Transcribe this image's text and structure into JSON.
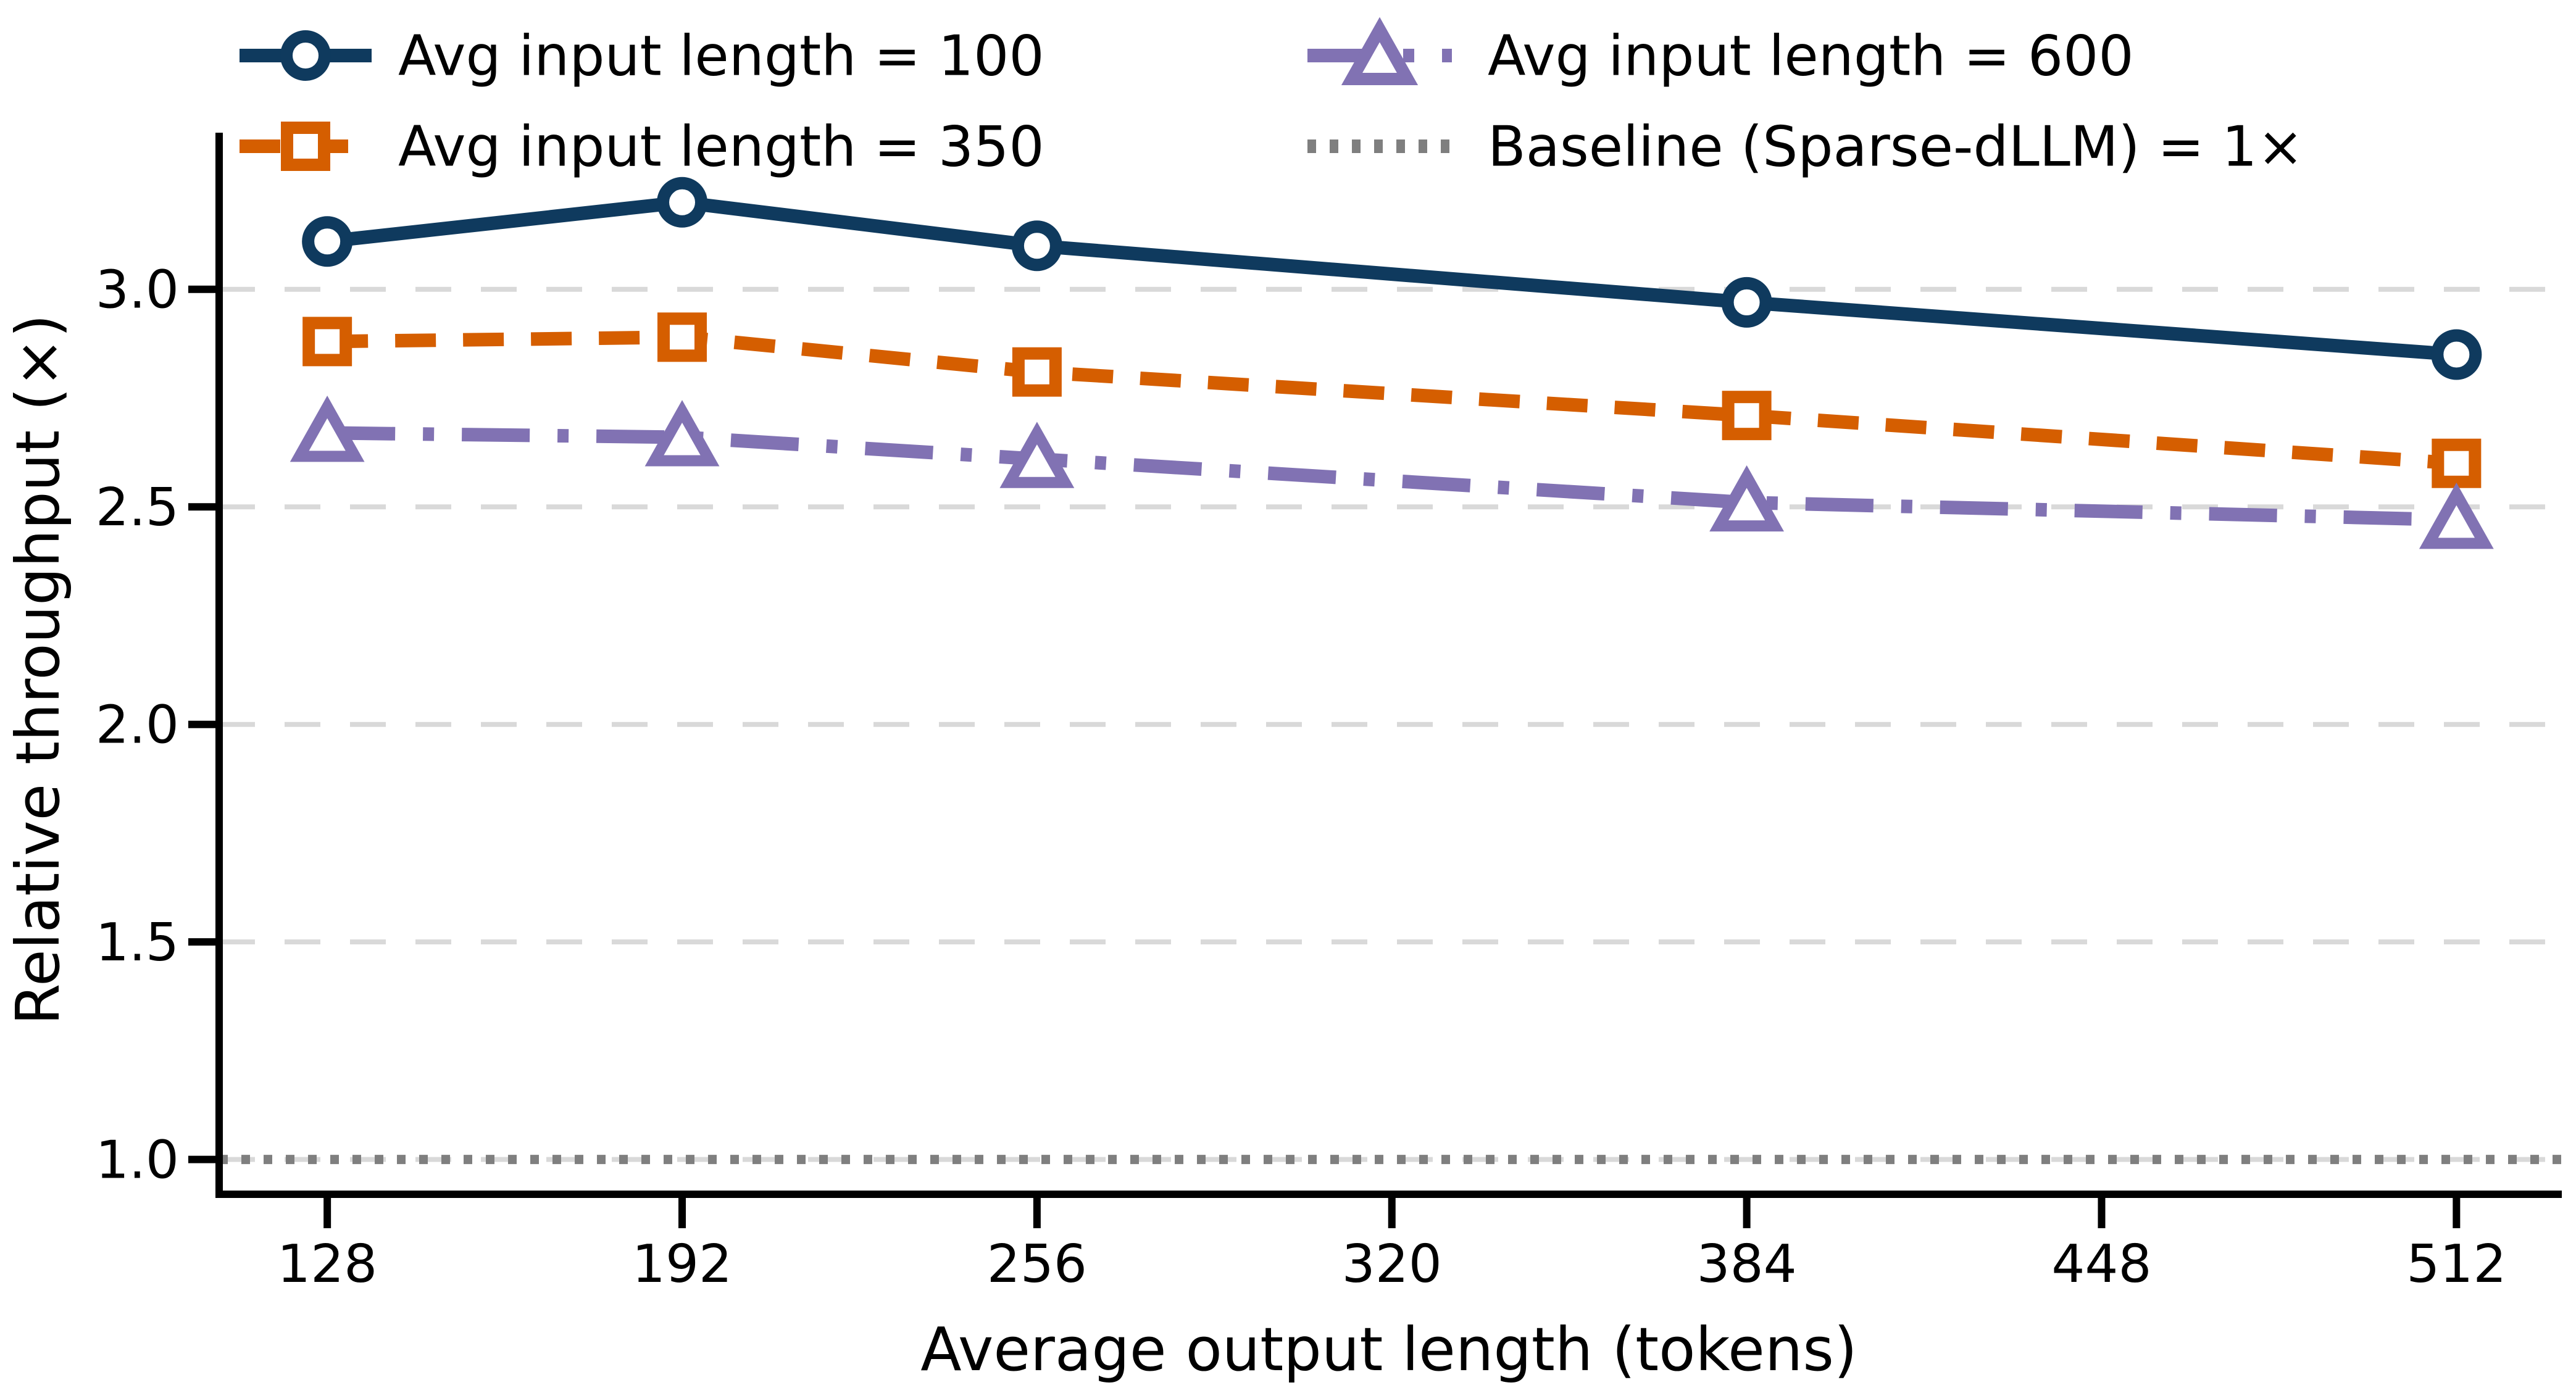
{
  "chart_data": {
    "type": "line",
    "title": "",
    "xlabel": "Average output length (tokens)",
    "ylabel": "Relative throughput (×)",
    "x": [
      128,
      192,
      256,
      384,
      512
    ],
    "xticks": [
      128,
      192,
      256,
      320,
      384,
      448,
      512
    ],
    "yticks": [
      1.0,
      1.5,
      2.0,
      2.5,
      3.0
    ],
    "xlim": [
      108.5,
      531
    ],
    "ylim": [
      0.92,
      3.36
    ],
    "grid": "horizontal-dashed",
    "legend_position": "top-frameless-two-columns",
    "series": [
      {
        "name": "Avg input length = 100",
        "marker": "circle",
        "linestyle": "solid",
        "color": "#0f3a5e",
        "values": [
          3.11,
          3.2,
          3.1,
          2.97,
          2.85
        ]
      },
      {
        "name": "Avg input length = 350",
        "marker": "square",
        "linestyle": "dashed",
        "color": "#d55e00",
        "values": [
          2.88,
          2.89,
          2.81,
          2.71,
          2.6
        ]
      },
      {
        "name": "Avg input length = 600",
        "marker": "triangle",
        "linestyle": "dashdot",
        "color": "#8172b3",
        "values": [
          2.67,
          2.66,
          2.61,
          2.51,
          2.47
        ]
      }
    ],
    "baseline": {
      "name": "Baseline (Sparse-dLLM) = 1×",
      "value": 1.0,
      "color": "#7f7f7f",
      "linestyle": "dotted"
    }
  },
  "style_colors": {
    "gridline": "#d9d9d9",
    "axis": "#000000",
    "background": "#ffffff"
  }
}
